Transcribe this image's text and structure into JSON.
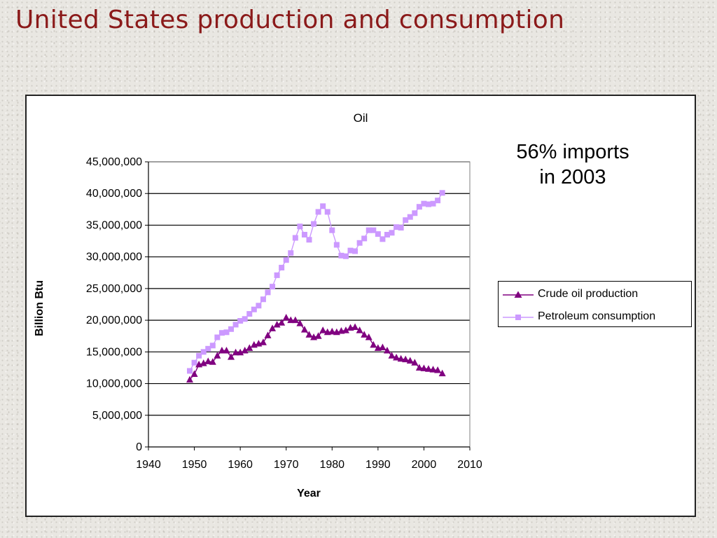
{
  "slide": {
    "title": "United States production and consumption"
  },
  "annotation": {
    "line1": "56% imports",
    "line2": "in 2003"
  },
  "chart_data": {
    "type": "line",
    "title": "Oil",
    "xlabel": "Year",
    "ylabel": "Billion Btu",
    "xlim": [
      1940,
      2010
    ],
    "ylim": [
      0,
      45000000
    ],
    "x_ticks": [
      1940,
      1950,
      1960,
      1970,
      1980,
      1990,
      2000,
      2010
    ],
    "y_ticks": [
      0,
      5000000,
      10000000,
      15000000,
      20000000,
      25000000,
      30000000,
      35000000,
      40000000,
      45000000
    ],
    "y_tick_labels": [
      "0",
      "5,000,000",
      "10,000,000",
      "15,000,000",
      "20,000,000",
      "25,000,000",
      "30,000,000",
      "35,000,000",
      "40,000,000",
      "45,000,000"
    ],
    "grid": "horizontal",
    "legend_position": "right",
    "x": [
      1949,
      1950,
      1951,
      1952,
      1953,
      1954,
      1955,
      1956,
      1957,
      1958,
      1959,
      1960,
      1961,
      1962,
      1963,
      1964,
      1965,
      1966,
      1967,
      1968,
      1969,
      1970,
      1971,
      1972,
      1973,
      1974,
      1975,
      1976,
      1977,
      1978,
      1979,
      1980,
      1981,
      1982,
      1983,
      1984,
      1985,
      1986,
      1987,
      1988,
      1989,
      1990,
      1991,
      1992,
      1993,
      1994,
      1995,
      1996,
      1997,
      1998,
      1999,
      2000,
      2001,
      2002,
      2003,
      2004
    ],
    "series": [
      {
        "name": "Crude oil production",
        "color": "#800080",
        "marker": "triangle",
        "values": [
          10600000,
          11500000,
          13000000,
          13200000,
          13500000,
          13400000,
          14400000,
          15200000,
          15200000,
          14200000,
          14900000,
          14900000,
          15200000,
          15600000,
          16100000,
          16300000,
          16500000,
          17600000,
          18700000,
          19300000,
          19600000,
          20400000,
          20000000,
          20000000,
          19500000,
          18500000,
          17700000,
          17300000,
          17500000,
          18400000,
          18100000,
          18200000,
          18100000,
          18300000,
          18400000,
          18800000,
          18900000,
          18400000,
          17700000,
          17300000,
          16100000,
          15600000,
          15700000,
          15200000,
          14400000,
          14100000,
          13900000,
          13800000,
          13600000,
          13300000,
          12500000,
          12400000,
          12300000,
          12200000,
          12100000,
          11600000
        ]
      },
      {
        "name": "Petroleum consumption",
        "color": "#cc99ff",
        "marker": "square",
        "values": [
          12000000,
          13300000,
          14400000,
          15000000,
          15500000,
          16000000,
          17300000,
          18000000,
          18100000,
          18600000,
          19300000,
          19900000,
          20200000,
          21000000,
          21700000,
          22300000,
          23300000,
          24400000,
          25300000,
          27100000,
          28300000,
          29500000,
          30600000,
          33000000,
          34800000,
          33500000,
          32700000,
          35200000,
          37100000,
          38000000,
          37100000,
          34200000,
          31900000,
          30200000,
          30100000,
          31000000,
          30900000,
          32200000,
          32900000,
          34200000,
          34200000,
          33600000,
          32800000,
          33500000,
          33800000,
          34700000,
          34600000,
          35800000,
          36300000,
          36900000,
          37900000,
          38400000,
          38300000,
          38400000,
          38900000,
          40100000
        ]
      }
    ]
  }
}
